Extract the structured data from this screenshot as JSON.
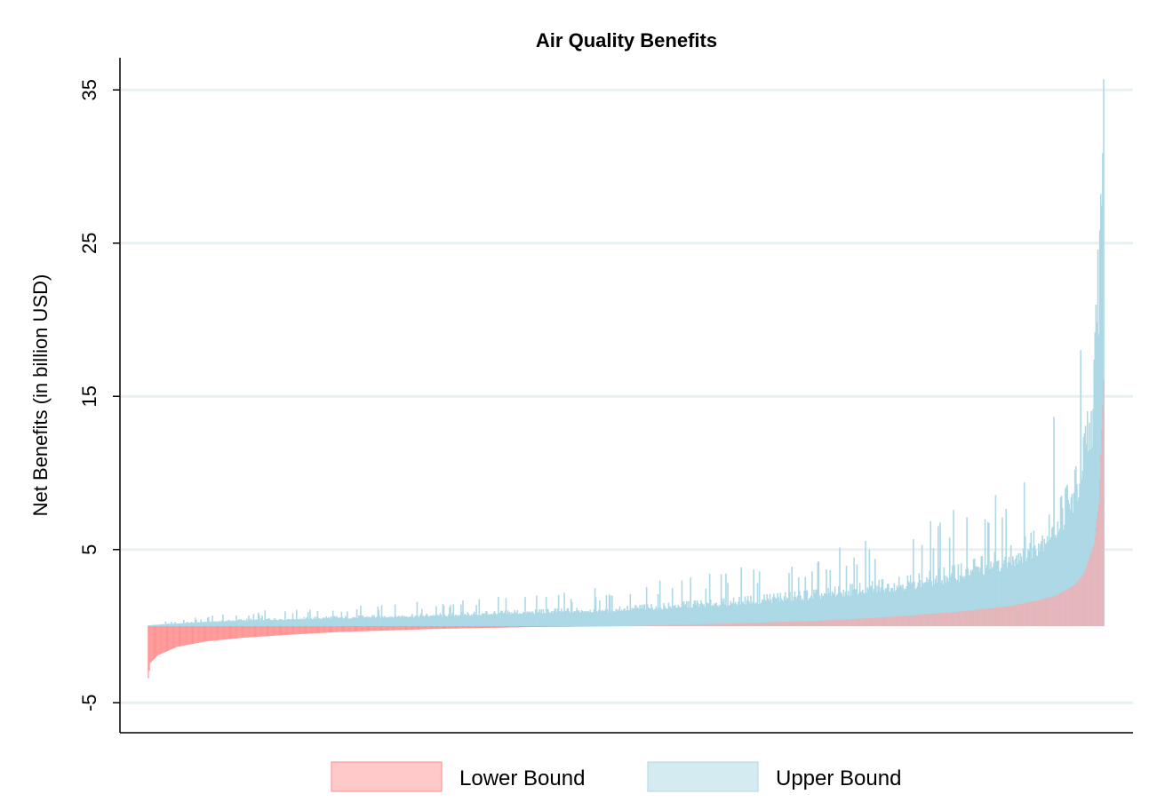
{
  "chart_data": {
    "type": "bar",
    "title": "Air Quality Benefits",
    "xlabel": "",
    "ylabel": "Net Benefits (in billion USD)",
    "ylim": [
      -7,
      37
    ],
    "yticks": [
      -5,
      5,
      15,
      25,
      35
    ],
    "grid": true,
    "legend_placement": "bottom",
    "n_bars": 1000,
    "sorted_by": "lower bound, ascending",
    "series": [
      {
        "name": "Lower Bound",
        "color": "#ffc9c9",
        "edge_color": "#ff4d4d",
        "profile": {
          "x_fraction": [
            0,
            0.002,
            0.01,
            0.03,
            0.06,
            0.1,
            0.15,
            0.2,
            0.3,
            0.4,
            0.5,
            0.6,
            0.7,
            0.75,
            0.8,
            0.85,
            0.9,
            0.93,
            0.95,
            0.97,
            0.98,
            0.99,
            0.995,
            1.0
          ],
          "values": [
            -3.4,
            -2.4,
            -1.9,
            -1.35,
            -1.0,
            -0.75,
            -0.55,
            -0.38,
            -0.18,
            -0.06,
            0.0,
            0.15,
            0.35,
            0.5,
            0.7,
            0.95,
            1.3,
            1.65,
            2.0,
            2.7,
            3.5,
            5.4,
            8.0,
            16.0
          ]
        }
      },
      {
        "name": "Upper Bound",
        "color": "#add8e6",
        "profile": {
          "x_fraction": [
            0,
            0.01,
            0.05,
            0.1,
            0.2,
            0.3,
            0.4,
            0.5,
            0.6,
            0.7,
            0.75,
            0.8,
            0.85,
            0.9,
            0.93,
            0.95,
            0.97,
            0.98,
            0.99,
            0.995,
            1.0
          ],
          "values": [
            0.05,
            0.1,
            0.25,
            0.4,
            0.55,
            0.7,
            0.9,
            1.1,
            1.5,
            2.0,
            2.4,
            2.8,
            3.4,
            4.3,
            5.3,
            6.5,
            8.5,
            10.5,
            14.5,
            22.0,
            35.0
          ]
        }
      }
    ]
  }
}
